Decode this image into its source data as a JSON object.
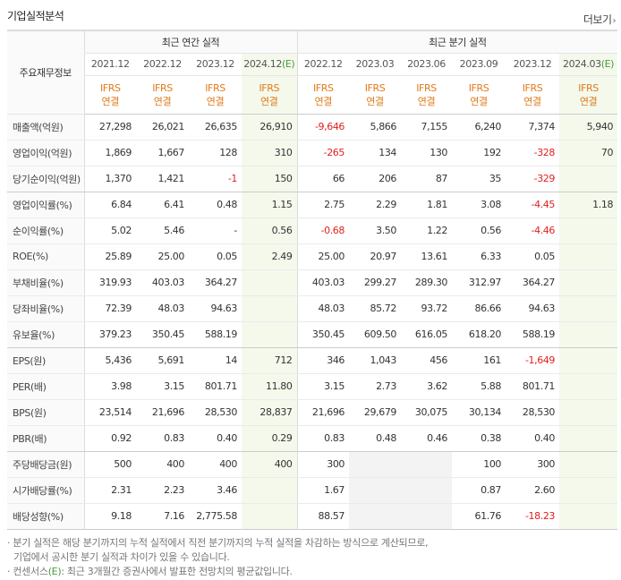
{
  "header": {
    "title": "기업실적분석",
    "more_label": "더보기",
    "more_arrow": "›"
  },
  "table": {
    "row_header_label": "주요재무정보",
    "group_annual": "최근 연간 실적",
    "group_quarter": "최근 분기 실적",
    "periods": [
      {
        "label": "2021.12",
        "est": false
      },
      {
        "label": "2022.12",
        "est": false
      },
      {
        "label": "2023.12",
        "est": false
      },
      {
        "label": "2024.12",
        "est": true
      },
      {
        "label": "2022.12",
        "est": false
      },
      {
        "label": "2023.03",
        "est": false
      },
      {
        "label": "2023.06",
        "est": false
      },
      {
        "label": "2023.09",
        "est": false
      },
      {
        "label": "2023.12",
        "est": false
      },
      {
        "label": "2024.03",
        "est": true
      }
    ],
    "est_mark": "(E)",
    "ifrs_line1": "IFRS",
    "ifrs_line2": "연결",
    "rows": [
      {
        "label": "매출액(억원)",
        "values": [
          "27,298",
          "26,021",
          "26,635",
          "26,910",
          "-9,646",
          "5,866",
          "7,155",
          "6,240",
          "7,374",
          "5,940"
        ]
      },
      {
        "label": "영업이익(억원)",
        "values": [
          "1,869",
          "1,667",
          "128",
          "310",
          "-265",
          "134",
          "130",
          "192",
          "-328",
          "70"
        ]
      },
      {
        "label": "당기순이익(억원)",
        "values": [
          "1,370",
          "1,421",
          "-1",
          "150",
          "66",
          "206",
          "87",
          "35",
          "-329",
          ""
        ]
      },
      {
        "label": "영업이익률(%)",
        "values": [
          "6.84",
          "6.41",
          "0.48",
          "1.15",
          "2.75",
          "2.29",
          "1.81",
          "3.08",
          "-4.45",
          "1.18"
        ]
      },
      {
        "label": "순이익률(%)",
        "values": [
          "5.02",
          "5.46",
          "-",
          "0.56",
          "-0.68",
          "3.50",
          "1.22",
          "0.56",
          "-4.46",
          ""
        ]
      },
      {
        "label": "ROE(%)",
        "values": [
          "25.89",
          "25.00",
          "0.05",
          "2.49",
          "25.00",
          "20.97",
          "13.61",
          "6.33",
          "0.05",
          ""
        ]
      },
      {
        "label": "부채비율(%)",
        "values": [
          "319.93",
          "403.03",
          "364.27",
          "",
          "403.03",
          "299.27",
          "289.30",
          "312.97",
          "364.27",
          ""
        ]
      },
      {
        "label": "당좌비율(%)",
        "values": [
          "72.39",
          "48.03",
          "94.63",
          "",
          "48.03",
          "85.72",
          "93.72",
          "86.66",
          "94.63",
          ""
        ]
      },
      {
        "label": "유보율(%)",
        "values": [
          "379.23",
          "350.45",
          "588.19",
          "",
          "350.45",
          "609.50",
          "616.05",
          "618.20",
          "588.19",
          ""
        ]
      },
      {
        "label": "EPS(원)",
        "values": [
          "5,436",
          "5,691",
          "14",
          "712",
          "346",
          "1,043",
          "456",
          "161",
          "-1,649",
          ""
        ]
      },
      {
        "label": "PER(배)",
        "values": [
          "3.98",
          "3.15",
          "801.71",
          "11.80",
          "3.15",
          "2.73",
          "3.62",
          "5.88",
          "801.71",
          ""
        ]
      },
      {
        "label": "BPS(원)",
        "values": [
          "23,514",
          "21,696",
          "28,530",
          "28,837",
          "21,696",
          "29,679",
          "30,075",
          "30,134",
          "28,530",
          ""
        ]
      },
      {
        "label": "PBR(배)",
        "values": [
          "0.92",
          "0.83",
          "0.40",
          "0.29",
          "0.83",
          "0.48",
          "0.46",
          "0.38",
          "0.40",
          ""
        ]
      },
      {
        "label": "주당배당금(원)",
        "values": [
          "500",
          "400",
          "400",
          "400",
          "300",
          "",
          "",
          "100",
          "300",
          ""
        ]
      },
      {
        "label": "시가배당률(%)",
        "values": [
          "2.31",
          "2.23",
          "3.46",
          "",
          "1.67",
          "",
          "",
          "0.87",
          "2.60",
          ""
        ]
      },
      {
        "label": "배당성향(%)",
        "values": [
          "9.18",
          "7.16",
          "2,775.58",
          "",
          "88.57",
          "",
          "",
          "61.76",
          "-18.23",
          ""
        ]
      }
    ]
  },
  "notes": {
    "line1": "· 분기 실적은 해당 분기까지의 누적 실적에서 직전 분기까지의 누적 실적을 차감하는 방식으로 계산되므로,",
    "line2": "기업에서 공시한 분기 실적과 차이가 있을 수 있습니다.",
    "line3_prefix": "· 컨센서스",
    "line3_mark": "(E)",
    "line3_suffix": ": 최근 3개월간 증권사에서 발표한 전망치의 평균값입니다."
  },
  "colors": {
    "negative": "#e0211f",
    "ifrs": "#e07a1a",
    "estimate_bg": "#f4f9ec",
    "estimate_mark": "#4a9a3a"
  }
}
